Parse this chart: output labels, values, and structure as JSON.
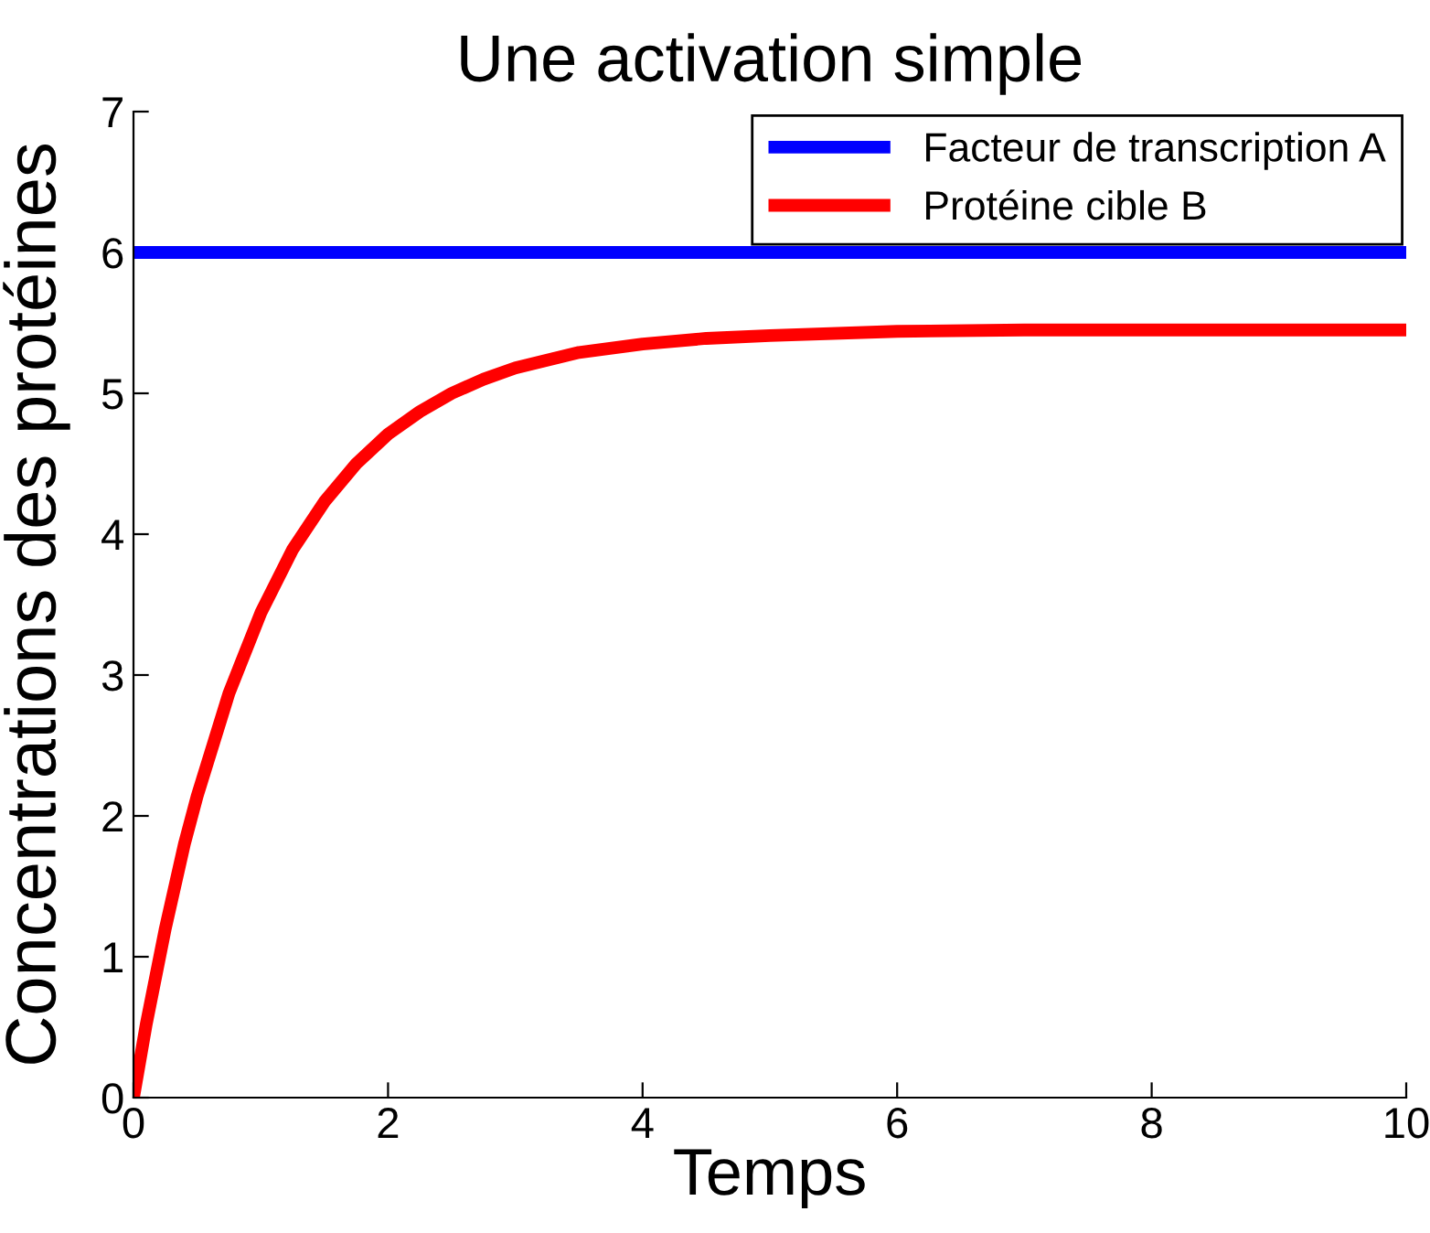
{
  "chart_data": {
    "type": "line",
    "title": "Une activation simple",
    "xlabel": "Temps",
    "ylabel": "Concentrations des protéines",
    "xlim": [
      0,
      10
    ],
    "ylim": [
      0,
      7
    ],
    "xticks": [
      0,
      2,
      4,
      6,
      8,
      10
    ],
    "yticks": [
      0,
      1,
      2,
      3,
      4,
      5,
      6,
      7
    ],
    "grid": false,
    "legend": "top right",
    "marker": "none",
    "line_style": "solid",
    "series": [
      {
        "name": "Facteur de transcription A",
        "color": "#0000ff",
        "x": [
          0,
          10
        ],
        "values": [
          6,
          6
        ]
      },
      {
        "name": "Protéine cible B",
        "color": "#ff0000",
        "x": [
          0,
          0.1,
          0.25,
          0.4,
          0.5,
          0.75,
          1,
          1.25,
          1.5,
          1.75,
          2,
          2.25,
          2.5,
          2.75,
          3,
          3.5,
          4,
          4.5,
          5,
          6,
          7,
          8,
          10
        ],
        "values": [
          0,
          0.52,
          1.2,
          1.8,
          2.14,
          2.87,
          3.44,
          3.89,
          4.23,
          4.5,
          4.71,
          4.87,
          5.0,
          5.1,
          5.18,
          5.29,
          5.35,
          5.39,
          5.41,
          5.44,
          5.45,
          5.45,
          5.45
        ]
      }
    ]
  }
}
